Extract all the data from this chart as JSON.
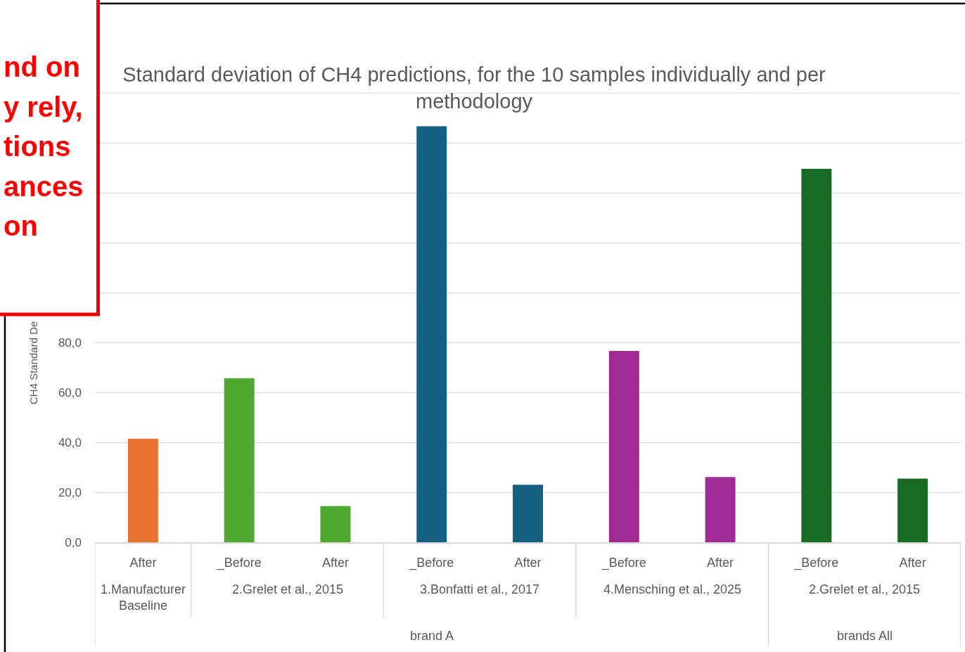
{
  "chart_data": {
    "type": "bar",
    "title": "Standard deviation of CH4 predictions, for the 10 samples individually and per methodology",
    "ylabel": "CH4 Standard De",
    "categories": [
      "After",
      "_Before",
      "After",
      "_Before",
      "After",
      "_Before",
      "After",
      "_Before",
      "After"
    ],
    "values": [
      41.5,
      65.7,
      14.5,
      166.6,
      23.0,
      76.6,
      26.1,
      149.6,
      25.5
    ],
    "colors": [
      "#e97132",
      "#4ea72e",
      "#4ea72e",
      "#156082",
      "#156082",
      "#a02b93",
      "#a02b93",
      "#196b24",
      "#196b24"
    ],
    "ylim": [
      0,
      180
    ],
    "yticks": [
      {
        "value": 0,
        "label": "0,0"
      },
      {
        "value": 20,
        "label": "20,0"
      },
      {
        "value": 40,
        "label": "40,0"
      },
      {
        "value": 60,
        "label": "60,0"
      },
      {
        "value": 80,
        "label": "80,0"
      },
      {
        "value": 100,
        "label": null
      },
      {
        "value": 120,
        "label": null
      },
      {
        "value": 140,
        "label": null
      },
      {
        "value": 160,
        "label": null
      },
      {
        "value": 180,
        "label": null
      }
    ],
    "grid": "y",
    "annotations": [
      "nd on",
      "y rely,",
      "tions",
      "ances",
      "on",
      "1.Manufacturer Baseline",
      "2.Grelet et al., 2015",
      "3.Bonfatti et al., 2017",
      "4.Mensching et al., 2025",
      "2.Grelet et al., 2015",
      "brand A",
      "brands All"
    ]
  }
}
